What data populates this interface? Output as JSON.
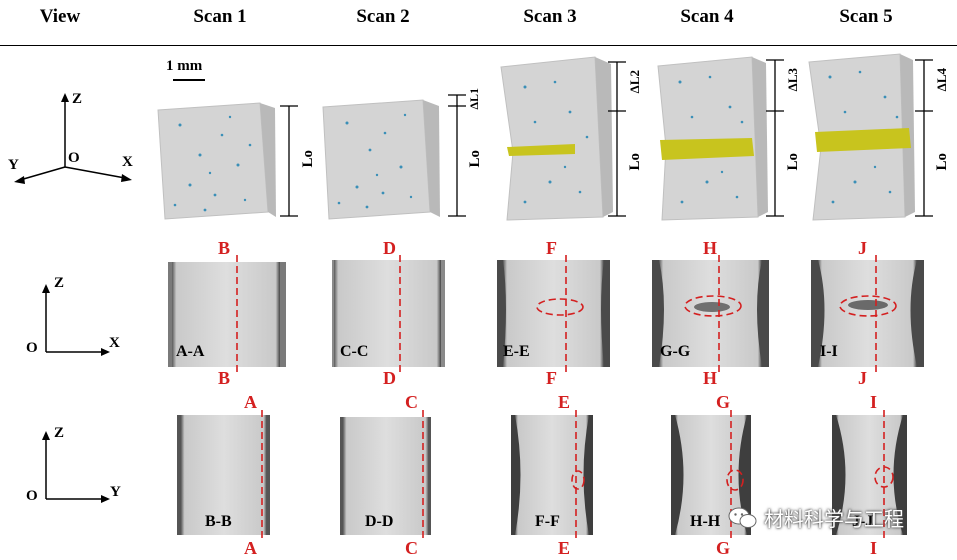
{
  "headers": {
    "view": "View",
    "scan1": "Scan 1",
    "scan2": "Scan 2",
    "scan3": "Scan 3",
    "scan4": "Scan 4",
    "scan5": "Scan 5"
  },
  "scale_bar": "1 mm",
  "axes": {
    "row1": {
      "z": "Z",
      "x": "X",
      "y": "Y",
      "o": "O"
    },
    "row2": {
      "z": "Z",
      "x": "X",
      "o": "O"
    },
    "row3": {
      "z": "Z",
      "y": "Y",
      "o": "O"
    }
  },
  "dims": {
    "lo": "Lo",
    "dl1": "ΔL1",
    "dl2": "ΔL2",
    "dl3": "ΔL3",
    "dl4": "ΔL4"
  },
  "row2": [
    {
      "top": "B",
      "bottom": "B",
      "section": "A-A"
    },
    {
      "top": "D",
      "bottom": "D",
      "section": "C-C"
    },
    {
      "top": "F",
      "bottom": "F",
      "section": "E-E"
    },
    {
      "top": "H",
      "bottom": "H",
      "section": "G-G"
    },
    {
      "top": "J",
      "bottom": "J",
      "section": "I-I"
    }
  ],
  "row3": [
    {
      "top": "A",
      "bottom": "A",
      "section": "B-B"
    },
    {
      "top": "C",
      "bottom": "C",
      "section": "D-D"
    },
    {
      "top": "E",
      "bottom": "E",
      "section": "F-F"
    },
    {
      "top": "G",
      "bottom": "G",
      "section": "H-H"
    },
    {
      "top": "I",
      "bottom": "I",
      "section": "J-J"
    }
  ],
  "watermark": "材料科学与工程",
  "colors": {
    "dashed": "#d42020",
    "pores": "#3a8fb7",
    "crack": "#c8c41e",
    "sample": "#d9d9d9"
  }
}
